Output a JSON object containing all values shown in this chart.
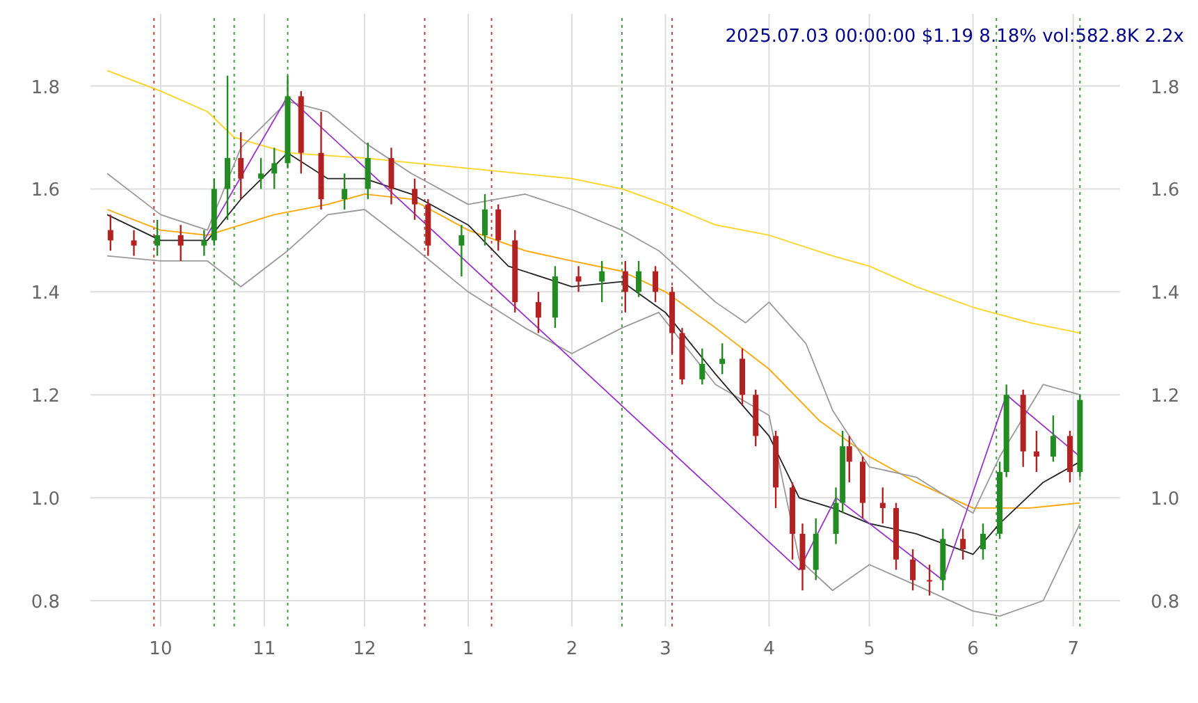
{
  "chart_data": {
    "type": "candlestick",
    "title": "2025.07.03 00:00:00 $1.19 8.18% vol:582.8K 2.2x",
    "grid": true,
    "xlim": [
      "2024-09-10",
      "2025-07-15"
    ],
    "xticks": [
      {
        "value": "2024-10-01",
        "label": "10"
      },
      {
        "value": "2024-11-01",
        "label": "11"
      },
      {
        "value": "2024-12-01",
        "label": "12"
      },
      {
        "value": "2025-01-01",
        "label": "1"
      },
      {
        "value": "2025-02-01",
        "label": "2"
      },
      {
        "value": "2025-03-01",
        "label": "3"
      },
      {
        "value": "2025-04-01",
        "label": "4"
      },
      {
        "value": "2025-05-01",
        "label": "5"
      },
      {
        "value": "2025-06-01",
        "label": "6"
      },
      {
        "value": "2025-07-01",
        "label": "7"
      }
    ],
    "ylim": [
      0.75,
      1.94
    ],
    "yticks": [
      0.8,
      {
        "value": 1,
        "label": "1.0"
      },
      1.2,
      1.4,
      1.6,
      1.8
    ],
    "y2lim": [
      0.75,
      1.94
    ],
    "y2ticks": [
      0.8,
      {
        "value": 1,
        "label": "1.0"
      },
      1.2,
      1.4,
      1.6,
      1.8
    ],
    "series": [
      {
        "type": "line",
        "color": "#ffd21f",
        "x": [
          "2024-09-15",
          "2024-10-01",
          "2024-10-15",
          "2024-10-23",
          "2024-11-08",
          "2024-12-01",
          "2025-01-01",
          "2025-02-01",
          "2025-02-16",
          "2025-03-01",
          "2025-03-16",
          "2025-04-01",
          "2025-04-20",
          "2025-05-01",
          "2025-05-15",
          "2025-06-01",
          "2025-06-18",
          "2025-07-03"
        ],
        "values": [
          1.83,
          1.79,
          1.75,
          1.7,
          1.67,
          1.66,
          1.64,
          1.62,
          1.6,
          1.57,
          1.53,
          1.51,
          1.47,
          1.45,
          1.41,
          1.37,
          1.34,
          1.32
        ]
      },
      {
        "type": "line",
        "color": "#ffa500",
        "x": [
          "2024-09-15",
          "2024-10-01",
          "2024-10-15",
          "2024-11-04",
          "2024-11-20",
          "2024-12-01",
          "2024-12-15",
          "2025-01-01",
          "2025-01-18",
          "2025-02-01",
          "2025-02-16",
          "2025-03-01",
          "2025-03-16",
          "2025-04-01",
          "2025-04-16",
          "2025-05-01",
          "2025-05-15",
          "2025-06-01",
          "2025-06-18",
          "2025-07-03"
        ],
        "values": [
          1.56,
          1.52,
          1.51,
          1.55,
          1.57,
          1.59,
          1.58,
          1.52,
          1.48,
          1.46,
          1.44,
          1.4,
          1.33,
          1.25,
          1.15,
          1.08,
          1.03,
          0.98,
          0.98,
          0.99
        ]
      },
      {
        "type": "line",
        "color": "#999999",
        "x": [
          "2024-09-15",
          "2024-10-01",
          "2024-10-15",
          "2024-10-25",
          "2024-11-08",
          "2024-11-20",
          "2024-12-01",
          "2024-12-15",
          "2025-01-01",
          "2025-01-18",
          "2025-02-01",
          "2025-02-16",
          "2025-02-27",
          "2025-03-16",
          "2025-03-25",
          "2025-04-01",
          "2025-04-12",
          "2025-04-20",
          "2025-05-01",
          "2025-05-15",
          "2025-06-01",
          "2025-06-09",
          "2025-06-22",
          "2025-07-03"
        ],
        "values": [
          1.63,
          1.55,
          1.52,
          1.68,
          1.77,
          1.75,
          1.69,
          1.63,
          1.57,
          1.59,
          1.56,
          1.52,
          1.48,
          1.38,
          1.34,
          1.38,
          1.3,
          1.17,
          1.06,
          1.04,
          0.97,
          1.08,
          1.22,
          1.2
        ]
      },
      {
        "type": "line",
        "color": "#999999",
        "x": [
          "2024-09-15",
          "2024-10-01",
          "2024-10-15",
          "2024-10-25",
          "2024-11-08",
          "2024-11-20",
          "2024-12-01",
          "2024-12-15",
          "2025-01-01",
          "2025-01-18",
          "2025-02-01",
          "2025-02-16",
          "2025-02-27",
          "2025-03-16",
          "2025-04-01",
          "2025-04-10",
          "2025-04-20",
          "2025-05-01",
          "2025-05-15",
          "2025-06-01",
          "2025-06-09",
          "2025-06-22",
          "2025-07-03"
        ],
        "values": [
          1.47,
          1.46,
          1.46,
          1.41,
          1.48,
          1.55,
          1.56,
          1.49,
          1.4,
          1.33,
          1.28,
          1.33,
          1.36,
          1.22,
          1.16,
          0.88,
          0.82,
          0.87,
          0.83,
          0.78,
          0.77,
          0.8,
          0.95
        ]
      },
      {
        "type": "line",
        "color": "#222222",
        "x": [
          "2024-09-15",
          "2024-10-01",
          "2024-10-15",
          "2024-10-25",
          "2024-11-08",
          "2024-11-20",
          "2024-12-01",
          "2024-12-15",
          "2025-01-01",
          "2025-01-13",
          "2025-02-01",
          "2025-02-16",
          "2025-03-01",
          "2025-03-16",
          "2025-04-01",
          "2025-04-10",
          "2025-04-20",
          "2025-05-01",
          "2025-05-15",
          "2025-06-01",
          "2025-06-09",
          "2025-06-22",
          "2025-07-03"
        ],
        "values": [
          1.55,
          1.5,
          1.5,
          1.58,
          1.67,
          1.62,
          1.62,
          1.59,
          1.53,
          1.45,
          1.41,
          1.42,
          1.36,
          1.24,
          1.12,
          1.0,
          0.98,
          0.95,
          0.93,
          0.89,
          0.95,
          1.03,
          1.07
        ]
      },
      {
        "type": "line",
        "color": "#9932cc",
        "x": [
          "2024-10-14",
          "2024-11-08",
          "2025-04-10",
          "2025-04-21",
          "2025-05-23",
          "2025-06-11",
          "2025-07-03"
        ],
        "values": [
          1.5,
          1.78,
          0.86,
          1.0,
          0.84,
          1.2,
          1.08
        ]
      },
      {
        "x": [
          "2024-09-16",
          "2024-09-23",
          "2024-09-30",
          "2024-10-07",
          "2024-10-14",
          "2024-10-17",
          "2024-10-21",
          "2024-10-25",
          "2024-10-31",
          "2024-11-04",
          "2024-11-08",
          "2024-11-12",
          "2024-11-18",
          "2024-11-25",
          "2024-12-02",
          "2024-12-09",
          "2024-12-16",
          "2024-12-20",
          "2024-12-30",
          "2025-01-06",
          "2025-01-10",
          "2025-01-15",
          "2025-01-22",
          "2025-01-27",
          "2025-02-03",
          "2025-02-10",
          "2025-02-17",
          "2025-02-21",
          "2025-02-26",
          "2025-03-03",
          "2025-03-06",
          "2025-03-12",
          "2025-03-18",
          "2025-03-24",
          "2025-03-28",
          "2025-04-03",
          "2025-04-08",
          "2025-04-11",
          "2025-04-15",
          "2025-04-21",
          "2025-04-23",
          "2025-04-25",
          "2025-04-29",
          "2025-05-05",
          "2025-05-09",
          "2025-05-14",
          "2025-05-19",
          "2025-05-23",
          "2025-05-29",
          "2025-06-04",
          "2025-06-09",
          "2025-06-11",
          "2025-06-16",
          "2025-06-20",
          "2025-06-25",
          "2025-06-30",
          "2025-07-03"
        ],
        "ohlc": [
          [
            1.52,
            1.55,
            1.48,
            1.5
          ],
          [
            1.5,
            1.52,
            1.47,
            1.49
          ],
          [
            1.49,
            1.54,
            1.47,
            1.51
          ],
          [
            1.51,
            1.53,
            1.46,
            1.49
          ],
          [
            1.49,
            1.52,
            1.47,
            1.5
          ],
          [
            1.5,
            1.62,
            1.49,
            1.6
          ],
          [
            1.6,
            1.82,
            1.54,
            1.66
          ],
          [
            1.66,
            1.71,
            1.58,
            1.62
          ],
          [
            1.62,
            1.66,
            1.6,
            1.63
          ],
          [
            1.63,
            1.68,
            1.6,
            1.65
          ],
          [
            1.65,
            1.82,
            1.64,
            1.78
          ],
          [
            1.78,
            1.79,
            1.63,
            1.67
          ],
          [
            1.67,
            1.75,
            1.56,
            1.58
          ],
          [
            1.58,
            1.63,
            1.56,
            1.6
          ],
          [
            1.6,
            1.69,
            1.58,
            1.66
          ],
          [
            1.66,
            1.68,
            1.57,
            1.6
          ],
          [
            1.6,
            1.62,
            1.54,
            1.57
          ],
          [
            1.57,
            1.58,
            1.47,
            1.49
          ],
          [
            1.49,
            1.53,
            1.43,
            1.51
          ],
          [
            1.51,
            1.59,
            1.49,
            1.56
          ],
          [
            1.56,
            1.57,
            1.48,
            1.5
          ],
          [
            1.5,
            1.52,
            1.36,
            1.38
          ],
          [
            1.38,
            1.4,
            1.32,
            1.35
          ],
          [
            1.35,
            1.45,
            1.33,
            1.43
          ],
          [
            1.43,
            1.45,
            1.4,
            1.42
          ],
          [
            1.42,
            1.46,
            1.38,
            1.44
          ],
          [
            1.44,
            1.46,
            1.36,
            1.4
          ],
          [
            1.4,
            1.46,
            1.39,
            1.44
          ],
          [
            1.44,
            1.45,
            1.38,
            1.4
          ],
          [
            1.4,
            1.41,
            1.28,
            1.32
          ],
          [
            1.32,
            1.33,
            1.22,
            1.23
          ],
          [
            1.23,
            1.29,
            1.22,
            1.26
          ],
          [
            1.26,
            1.3,
            1.24,
            1.27
          ],
          [
            1.27,
            1.29,
            1.18,
            1.2
          ],
          [
            1.2,
            1.21,
            1.1,
            1.12
          ],
          [
            1.12,
            1.13,
            0.98,
            1.02
          ],
          [
            1.02,
            1.03,
            0.88,
            0.93
          ],
          [
            0.93,
            0.95,
            0.82,
            0.86
          ],
          [
            0.86,
            0.96,
            0.84,
            0.93
          ],
          [
            0.93,
            1.02,
            0.91,
            0.99
          ],
          [
            0.99,
            1.13,
            0.97,
            1.1
          ],
          [
            1.1,
            1.12,
            1.03,
            1.07
          ],
          [
            1.07,
            1.08,
            0.96,
            0.99
          ],
          [
            0.99,
            1.02,
            0.95,
            0.98
          ],
          [
            0.98,
            0.99,
            0.86,
            0.88
          ],
          [
            0.88,
            0.9,
            0.82,
            0.84
          ],
          [
            0.84,
            0.87,
            0.81,
            0.84
          ],
          [
            0.84,
            0.94,
            0.82,
            0.92
          ],
          [
            0.92,
            0.94,
            0.88,
            0.9
          ],
          [
            0.9,
            0.95,
            0.88,
            0.93
          ],
          [
            0.93,
            1.07,
            0.92,
            1.05
          ],
          [
            1.05,
            1.22,
            1.04,
            1.2
          ],
          [
            1.2,
            1.21,
            1.06,
            1.09
          ],
          [
            1.09,
            1.13,
            1.05,
            1.08
          ],
          [
            1.08,
            1.16,
            1.07,
            1.12
          ],
          [
            1.12,
            1.13,
            1.03,
            1.05
          ],
          [
            1.05,
            1.2,
            1.04,
            1.19
          ]
        ],
        "colors": [
          "#b22222",
          "#b22222",
          "#228b22",
          "#b22222",
          "#228b22",
          "#228b22",
          "#228b22",
          "#b22222",
          "#228b22",
          "#228b22",
          "#228b22",
          "#b22222",
          "#b22222",
          "#228b22",
          "#228b22",
          "#b22222",
          "#b22222",
          "#b22222",
          "#228b22",
          "#228b22",
          "#b22222",
          "#b22222",
          "#b22222",
          "#228b22",
          "#b22222",
          "#228b22",
          "#b22222",
          "#228b22",
          "#b22222",
          "#b22222",
          "#b22222",
          "#228b22",
          "#228b22",
          "#b22222",
          "#b22222",
          "#b22222",
          "#b22222",
          "#b22222",
          "#228b22",
          "#228b22",
          "#228b22",
          "#b22222",
          "#b22222",
          "#b22222",
          "#b22222",
          "#b22222",
          "#b22222",
          "#228b22",
          "#b22222",
          "#228b22",
          "#228b22",
          "#228b22",
          "#b22222",
          "#b22222",
          "#228b22",
          "#b22222",
          "#228b22"
        ]
      }
    ],
    "ref_lines": [
      {
        "axis": "x",
        "value": "2024-09-29",
        "color": "#c04040",
        "line_style": "dotted"
      },
      {
        "axis": "x",
        "value": "2024-10-17",
        "color": "#40a040",
        "line_style": "dotted"
      },
      {
        "axis": "x",
        "value": "2024-10-23",
        "color": "#40a040",
        "line_style": "dotted"
      },
      {
        "axis": "x",
        "value": "2024-11-08",
        "color": "#40a040",
        "line_style": "dotted"
      },
      {
        "axis": "x",
        "value": "2024-12-19",
        "color": "#c04040",
        "line_style": "dotted"
      },
      {
        "axis": "x",
        "value": "2025-01-08",
        "color": "#c04040",
        "line_style": "dotted"
      },
      {
        "axis": "x",
        "value": "2025-02-16",
        "color": "#40a040",
        "line_style": "dotted"
      },
      {
        "axis": "x",
        "value": "2025-03-03",
        "color": "#c04040",
        "line_style": "dotted"
      },
      {
        "axis": "x",
        "value": "2025-06-08",
        "color": "#40a040",
        "line_style": "dotted"
      },
      {
        "axis": "x",
        "value": "2025-07-03",
        "color": "#40a040",
        "line_style": "dotted"
      }
    ]
  }
}
